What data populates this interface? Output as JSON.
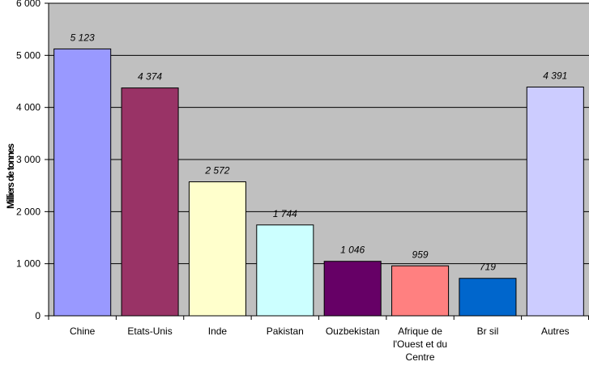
{
  "chart_data": {
    "type": "bar",
    "title": "",
    "xlabel": "",
    "ylabel": "Milliers de tonnes",
    "ylim": [
      0,
      6000
    ],
    "yticks": [
      0,
      1000,
      2000,
      3000,
      4000,
      5000,
      6000
    ],
    "ytick_labels": [
      "0",
      "1 000",
      "2 000",
      "3 000",
      "4 000",
      "5 000",
      "6 000"
    ],
    "grid": true,
    "legend": "none",
    "plot_background": "#c0c0c0",
    "categories": [
      [
        "Chine"
      ],
      [
        "Etats-Unis"
      ],
      [
        "Inde"
      ],
      [
        "Pakistan"
      ],
      [
        "Ouzbekistan"
      ],
      [
        "Afrique de",
        "l'Ouest et du",
        "Centre"
      ],
      [
        "Br  sil"
      ],
      [
        "Autres"
      ]
    ],
    "values": [
      5123,
      4374,
      2572,
      1744,
      1046,
      959,
      719,
      4391
    ],
    "value_labels": [
      "5 123",
      "4 374",
      "2 572",
      "1 744",
      "1 046",
      "959",
      "719",
      "4 391"
    ],
    "colors": [
      "#9999ff",
      "#993366",
      "#ffffcc",
      "#ccffff",
      "#660066",
      "#ff8080",
      "#0066cc",
      "#ccccff"
    ]
  }
}
